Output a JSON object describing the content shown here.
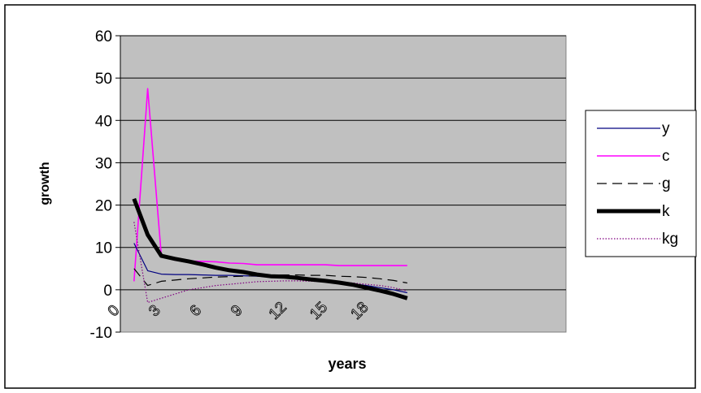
{
  "chart_data": {
    "type": "line",
    "title": "",
    "xlabel": "years",
    "ylabel": "growth",
    "ylim": [
      -10,
      60
    ],
    "yticks": [
      -10,
      0,
      10,
      20,
      30,
      40,
      50,
      60
    ],
    "xticks": [
      0,
      3,
      6,
      9,
      12,
      15,
      18
    ],
    "grid": "horizontal",
    "legend": "right",
    "plot_background": "#c0c0c0",
    "x": [
      1,
      2,
      3,
      4,
      5,
      6,
      7,
      8,
      9,
      10,
      11,
      12,
      13,
      14,
      15,
      16,
      17,
      18,
      19,
      20,
      21
    ],
    "series": [
      {
        "name": "y",
        "color": "#000080",
        "dash": "solid",
        "width": 1.2,
        "values": [
          11,
          4.5,
          3.7,
          3.6,
          3.6,
          3.5,
          3.4,
          3.4,
          3.3,
          3.2,
          3.0,
          2.8,
          2.6,
          2.4,
          2.2,
          1.8,
          1.4,
          1.0,
          0.5,
          0,
          -0.7
        ]
      },
      {
        "name": "c",
        "color": "#ff00ff",
        "dash": "solid",
        "width": 1.6,
        "values": [
          2,
          47.5,
          8,
          7,
          6.8,
          6.7,
          6.6,
          6.3,
          6.2,
          5.9,
          5.9,
          5.9,
          5.9,
          5.9,
          5.9,
          5.7,
          5.7,
          5.7,
          5.7,
          5.7,
          5.7
        ]
      },
      {
        "name": "g",
        "color": "#000000",
        "dash": "dashed",
        "width": 1.2,
        "values": [
          5,
          1,
          2,
          2.3,
          2.6,
          2.8,
          3.0,
          3.1,
          3.2,
          3.3,
          3.4,
          3.5,
          3.5,
          3.4,
          3.4,
          3.2,
          3.1,
          2.9,
          2.6,
          2.2,
          1.6
        ]
      },
      {
        "name": "k",
        "color": "#000000",
        "dash": "solid",
        "width": 5,
        "values": [
          21.5,
          13,
          8,
          7.3,
          6.7,
          6,
          5.2,
          4.6,
          4.2,
          3.6,
          3.2,
          3.1,
          2.8,
          2.4,
          2.1,
          1.7,
          1.2,
          0.5,
          -0.2,
          -1,
          -2
        ]
      },
      {
        "name": "kg",
        "color": "#800080",
        "dash": "dotted",
        "width": 1.2,
        "values": [
          16,
          -3,
          -2,
          -1,
          0,
          0.5,
          1,
          1.3,
          1.6,
          1.9,
          2.0,
          2.1,
          2.1,
          2.0,
          1.9,
          1.8,
          1.6,
          1.3,
          1.0,
          0.5,
          -0.3
        ]
      }
    ]
  }
}
